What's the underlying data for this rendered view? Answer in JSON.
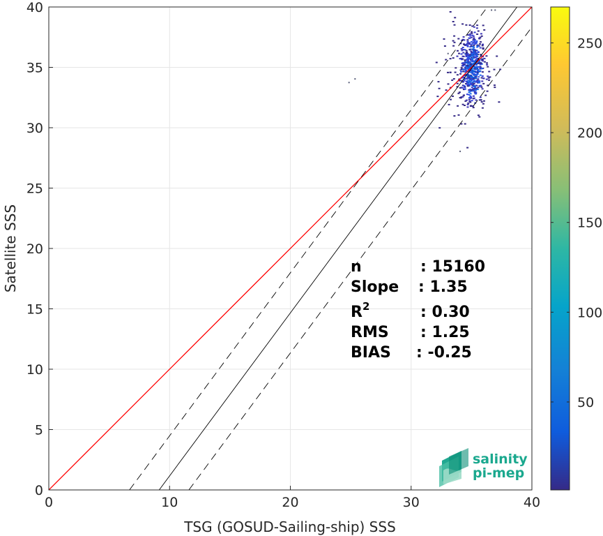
{
  "chart_data": {
    "type": "scatter",
    "title": "",
    "xlabel": "TSG (GOSUD-Sailing-ship) SSS",
    "ylabel": "Satellite SSS",
    "xlim": [
      0,
      40
    ],
    "ylim": [
      0,
      40
    ],
    "xticks": [
      0,
      10,
      20,
      30,
      40
    ],
    "yticks": [
      0,
      5,
      10,
      15,
      20,
      25,
      30,
      35,
      40
    ],
    "grid": true,
    "reference_lines": [
      {
        "name": "1:1",
        "color": "#ff0000",
        "style": "solid",
        "points": [
          [
            0,
            0
          ],
          [
            40,
            40
          ]
        ]
      },
      {
        "name": "regression",
        "color": "#000000",
        "style": "solid",
        "points": [
          [
            9.14,
            0
          ],
          [
            38.77,
            40
          ]
        ]
      },
      {
        "name": "upper",
        "color": "#000000",
        "style": "dashed",
        "points": [
          [
            6.68,
            0
          ],
          [
            36.31,
            40
          ]
        ]
      },
      {
        "name": "lower",
        "color": "#000000",
        "style": "dashed",
        "points": [
          [
            11.6,
            0
          ],
          [
            41.23,
            40
          ]
        ]
      }
    ],
    "density_cluster": {
      "x_range": [
        31.5,
        37.5
      ],
      "y_range": [
        28,
        40
      ],
      "center": [
        35,
        35
      ],
      "colorbar": {
        "min": 1,
        "max": 270,
        "ticks": [
          50,
          100,
          150,
          200,
          250
        ],
        "colormap": "parula"
      }
    },
    "stats": [
      {
        "label": "n",
        "value": ": 15160"
      },
      {
        "label": "Slope",
        "value": ": 1.35"
      },
      {
        "label": "R",
        "sup": "2",
        "value": ": 0.30"
      },
      {
        "label": "RMS",
        "value": ": 1.25"
      },
      {
        "label": "BIAS",
        "value": ": -0.25"
      }
    ]
  },
  "logo": {
    "line1": "salinity",
    "line2": "pi-mep"
  }
}
